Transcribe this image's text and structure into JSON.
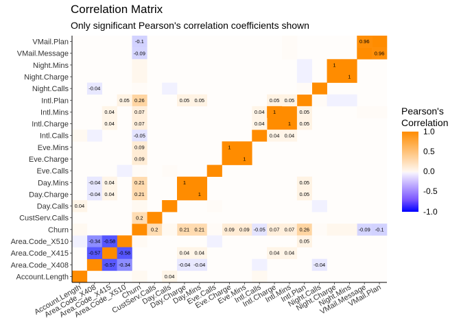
{
  "chart_data": {
    "type": "heatmap",
    "title": "Correlation Matrix",
    "subtitle": "Only significant Pearson's correlation coefficients shown",
    "legend": {
      "title_lines": [
        "Pearson's",
        "Correlation"
      ],
      "ticks": [
        "1.0",
        "0.5",
        "0.0",
        "-0.5",
        "-1.0"
      ],
      "tick_values": [
        1.0,
        0.5,
        0.0,
        -0.5,
        -1.0
      ],
      "range": [
        -1,
        1
      ],
      "placement": "right"
    },
    "variables": [
      "Account.Length",
      "Area.Code_X408",
      "Area.Code_X415",
      "Area.Code_X510",
      "Churn",
      "CustServ.Calls",
      "Day.Calls",
      "Day.Charge",
      "Day.Mins",
      "Eve.Calls",
      "Eve.Charge",
      "Eve.Mins",
      "Intl.Calls",
      "Intl.Charge",
      "Intl.Mins",
      "Intl.Plan",
      "Night.Calls",
      "Night.Charge",
      "Night.Mins",
      "VMail.Message",
      "VMail.Plan"
    ],
    "cells": [
      {
        "x": "Account.Length",
        "y": "Account.Length",
        "value": 1,
        "label": ""
      },
      {
        "x": "Area.Code_X408",
        "y": "Area.Code_X408",
        "value": 1,
        "label": ""
      },
      {
        "x": "Area.Code_X415",
        "y": "Area.Code_X415",
        "value": 1,
        "label": ""
      },
      {
        "x": "Area.Code_X510",
        "y": "Area.Code_X510",
        "value": 1,
        "label": ""
      },
      {
        "x": "Churn",
        "y": "Churn",
        "value": 1,
        "label": ""
      },
      {
        "x": "CustServ.Calls",
        "y": "CustServ.Calls",
        "value": 1,
        "label": ""
      },
      {
        "x": "Day.Calls",
        "y": "Day.Calls",
        "value": 1,
        "label": ""
      },
      {
        "x": "Day.Charge",
        "y": "Day.Charge",
        "value": 1,
        "label": ""
      },
      {
        "x": "Day.Mins",
        "y": "Day.Mins",
        "value": 1,
        "label": ""
      },
      {
        "x": "Eve.Calls",
        "y": "Eve.Calls",
        "value": 1,
        "label": ""
      },
      {
        "x": "Eve.Charge",
        "y": "Eve.Charge",
        "value": 1,
        "label": ""
      },
      {
        "x": "Eve.Mins",
        "y": "Eve.Mins",
        "value": 1,
        "label": ""
      },
      {
        "x": "Intl.Calls",
        "y": "Intl.Calls",
        "value": 1,
        "label": ""
      },
      {
        "x": "Intl.Charge",
        "y": "Intl.Charge",
        "value": 1,
        "label": ""
      },
      {
        "x": "Intl.Mins",
        "y": "Intl.Mins",
        "value": 1,
        "label": ""
      },
      {
        "x": "Intl.Plan",
        "y": "Intl.Plan",
        "value": 1,
        "label": ""
      },
      {
        "x": "Night.Calls",
        "y": "Night.Calls",
        "value": 1,
        "label": ""
      },
      {
        "x": "Night.Charge",
        "y": "Night.Charge",
        "value": 1,
        "label": ""
      },
      {
        "x": "Night.Mins",
        "y": "Night.Mins",
        "value": 1,
        "label": ""
      },
      {
        "x": "VMail.Message",
        "y": "VMail.Message",
        "value": 1,
        "label": ""
      },
      {
        "x": "VMail.Plan",
        "y": "VMail.Plan",
        "value": 1,
        "label": ""
      },
      {
        "x": "Churn",
        "y": "VMail.Plan",
        "value": -0.1,
        "label": "-0.1"
      },
      {
        "x": "VMail.Message",
        "y": "VMail.Plan",
        "value": 0.96,
        "label": "0.96"
      },
      {
        "x": "Churn",
        "y": "VMail.Message",
        "value": -0.09,
        "label": "-0.09"
      },
      {
        "x": "VMail.Plan",
        "y": "VMail.Message",
        "value": 0.96,
        "label": "0.96"
      },
      {
        "x": "Night.Charge",
        "y": "Night.Mins",
        "value": 1,
        "label": "1"
      },
      {
        "x": "Night.Mins",
        "y": "Night.Charge",
        "value": 1,
        "label": "1"
      },
      {
        "x": "Area.Code_X408",
        "y": "Night.Calls",
        "value": -0.04,
        "label": "-0.04"
      },
      {
        "x": "Churn",
        "y": "Intl.Plan",
        "value": 0.26,
        "label": "0.26"
      },
      {
        "x": "Area.Code_X510",
        "y": "Intl.Plan",
        "value": 0.05,
        "label": "0.05"
      },
      {
        "x": "Day.Charge",
        "y": "Intl.Plan",
        "value": 0.05,
        "label": "0.05"
      },
      {
        "x": "Day.Mins",
        "y": "Intl.Plan",
        "value": 0.05,
        "label": "0.05"
      },
      {
        "x": "Intl.Charge",
        "y": "Intl.Plan",
        "value": 0.05,
        "label": "0.05"
      },
      {
        "x": "Intl.Mins",
        "y": "Intl.Plan",
        "value": 0.05,
        "label": "0.05"
      },
      {
        "x": "Area.Code_X415",
        "y": "Intl.Mins",
        "value": 0.04,
        "label": "0.04"
      },
      {
        "x": "Churn",
        "y": "Intl.Mins",
        "value": 0.07,
        "label": "0.07"
      },
      {
        "x": "Intl.Calls",
        "y": "Intl.Mins",
        "value": 0.04,
        "label": "0.04"
      },
      {
        "x": "Intl.Charge",
        "y": "Intl.Mins",
        "value": 1,
        "label": "1"
      },
      {
        "x": "Intl.Plan",
        "y": "Intl.Mins",
        "value": 0.05,
        "label": "0.05"
      },
      {
        "x": "Area.Code_X415",
        "y": "Intl.Charge",
        "value": 0.04,
        "label": "0.04"
      },
      {
        "x": "Churn",
        "y": "Intl.Charge",
        "value": 0.07,
        "label": "0.07"
      },
      {
        "x": "Intl.Calls",
        "y": "Intl.Charge",
        "value": 0.04,
        "label": "0.04"
      },
      {
        "x": "Intl.Mins",
        "y": "Intl.Charge",
        "value": 1,
        "label": "1"
      },
      {
        "x": "Intl.Plan",
        "y": "Intl.Charge",
        "value": 0.05,
        "label": "0.05"
      },
      {
        "x": "Churn",
        "y": "Intl.Calls",
        "value": -0.05,
        "label": "-0.05"
      },
      {
        "x": "Intl.Charge",
        "y": "Intl.Calls",
        "value": 0.04,
        "label": "0.04"
      },
      {
        "x": "Intl.Mins",
        "y": "Intl.Calls",
        "value": 0.04,
        "label": "0.04"
      },
      {
        "x": "Churn",
        "y": "Eve.Mins",
        "value": 0.09,
        "label": "0.09"
      },
      {
        "x": "Eve.Charge",
        "y": "Eve.Mins",
        "value": 1,
        "label": "1"
      },
      {
        "x": "Churn",
        "y": "Eve.Charge",
        "value": 0.09,
        "label": "0.09"
      },
      {
        "x": "Eve.Mins",
        "y": "Eve.Charge",
        "value": 1,
        "label": "1"
      },
      {
        "x": "Area.Code_X408",
        "y": "Day.Mins",
        "value": -0.04,
        "label": "-0.04"
      },
      {
        "x": "Area.Code_X415",
        "y": "Day.Mins",
        "value": 0.04,
        "label": "0.04"
      },
      {
        "x": "Churn",
        "y": "Day.Mins",
        "value": 0.21,
        "label": "0.21"
      },
      {
        "x": "Day.Charge",
        "y": "Day.Mins",
        "value": 1,
        "label": "1"
      },
      {
        "x": "Intl.Plan",
        "y": "Day.Mins",
        "value": 0.05,
        "label": "0.05"
      },
      {
        "x": "Area.Code_X408",
        "y": "Day.Charge",
        "value": -0.04,
        "label": "-0.04"
      },
      {
        "x": "Area.Code_X415",
        "y": "Day.Charge",
        "value": 0.04,
        "label": "0.04"
      },
      {
        "x": "Churn",
        "y": "Day.Charge",
        "value": 0.21,
        "label": "0.21"
      },
      {
        "x": "Day.Mins",
        "y": "Day.Charge",
        "value": 1,
        "label": "1"
      },
      {
        "x": "Intl.Plan",
        "y": "Day.Charge",
        "value": 0.05,
        "label": "0.05"
      },
      {
        "x": "Account.Length",
        "y": "Day.Calls",
        "value": 0.04,
        "label": "0.04"
      },
      {
        "x": "Churn",
        "y": "CustServ.Calls",
        "value": 0.2,
        "label": "0.2"
      },
      {
        "x": "CustServ.Calls",
        "y": "Churn",
        "value": 0.2,
        "label": "0.2"
      },
      {
        "x": "Day.Charge",
        "y": "Churn",
        "value": 0.21,
        "label": "0.21"
      },
      {
        "x": "Day.Mins",
        "y": "Churn",
        "value": 0.21,
        "label": "0.21"
      },
      {
        "x": "Eve.Charge",
        "y": "Churn",
        "value": 0.09,
        "label": "0.09"
      },
      {
        "x": "Eve.Mins",
        "y": "Churn",
        "value": 0.09,
        "label": "0.09"
      },
      {
        "x": "Intl.Calls",
        "y": "Churn",
        "value": -0.05,
        "label": "-0.05"
      },
      {
        "x": "Intl.Charge",
        "y": "Churn",
        "value": 0.07,
        "label": "0.07"
      },
      {
        "x": "Intl.Mins",
        "y": "Churn",
        "value": 0.07,
        "label": "0.07"
      },
      {
        "x": "Intl.Plan",
        "y": "Churn",
        "value": 0.26,
        "label": "0.26"
      },
      {
        "x": "VMail.Message",
        "y": "Churn",
        "value": -0.09,
        "label": "-0.09"
      },
      {
        "x": "VMail.Plan",
        "y": "Churn",
        "value": -0.1,
        "label": "-0.1"
      },
      {
        "x": "Area.Code_X408",
        "y": "Area.Code_X510",
        "value": -0.34,
        "label": "-0.34"
      },
      {
        "x": "Area.Code_X415",
        "y": "Area.Code_X510",
        "value": -0.58,
        "label": "-0.58"
      },
      {
        "x": "Intl.Plan",
        "y": "Area.Code_X510",
        "value": 0.05,
        "label": "0.05"
      },
      {
        "x": "Area.Code_X408",
        "y": "Area.Code_X415",
        "value": -0.57,
        "label": "-0.57"
      },
      {
        "x": "Area.Code_X510",
        "y": "Area.Code_X415",
        "value": -0.58,
        "label": "-0.58"
      },
      {
        "x": "Day.Charge",
        "y": "Area.Code_X415",
        "value": 0.04,
        "label": "0.04"
      },
      {
        "x": "Day.Mins",
        "y": "Area.Code_X415",
        "value": 0.04,
        "label": "0.04"
      },
      {
        "x": "Intl.Charge",
        "y": "Area.Code_X415",
        "value": 0.04,
        "label": "0.04"
      },
      {
        "x": "Intl.Mins",
        "y": "Area.Code_X415",
        "value": 0.04,
        "label": "0.04"
      },
      {
        "x": "Area.Code_X415",
        "y": "Area.Code_X408",
        "value": -0.57,
        "label": "-0.57"
      },
      {
        "x": "Area.Code_X510",
        "y": "Area.Code_X408",
        "value": -0.34,
        "label": "-0.34"
      },
      {
        "x": "Day.Charge",
        "y": "Area.Code_X408",
        "value": -0.04,
        "label": "-0.04"
      },
      {
        "x": "Day.Mins",
        "y": "Area.Code_X408",
        "value": -0.04,
        "label": "-0.04"
      },
      {
        "x": "Night.Calls",
        "y": "Area.Code_X408",
        "value": -0.04,
        "label": "-0.04"
      },
      {
        "x": "Day.Calls",
        "y": "Account.Length",
        "value": 0.04,
        "label": "0.04"
      },
      {
        "x": "Account.Length",
        "y": "Area.Code_X510",
        "value": -0.02,
        "label": ""
      },
      {
        "x": "Churn",
        "y": "Area.Code_X510",
        "value": 0.015,
        "label": ""
      },
      {
        "x": "Churn",
        "y": "Day.Calls",
        "value": 0.02,
        "label": ""
      },
      {
        "x": "Churn",
        "y": "Eve.Calls",
        "value": 0.01,
        "label": ""
      },
      {
        "x": "Churn",
        "y": "Night.Calls",
        "value": 0.01,
        "label": ""
      },
      {
        "x": "Churn",
        "y": "Night.Charge",
        "value": 0.03,
        "label": ""
      },
      {
        "x": "Churn",
        "y": "Night.Mins",
        "value": 0.03,
        "label": ""
      },
      {
        "x": "Churn",
        "y": "Account.Length",
        "value": 0.02,
        "label": ""
      },
      {
        "x": "Day.Calls",
        "y": "Churn",
        "value": 0.02,
        "label": ""
      },
      {
        "x": "Eve.Calls",
        "y": "Churn",
        "value": 0.01,
        "label": ""
      },
      {
        "x": "Night.Calls",
        "y": "Churn",
        "value": 0.01,
        "label": ""
      },
      {
        "x": "Night.Charge",
        "y": "Churn",
        "value": 0.03,
        "label": ""
      },
      {
        "x": "Night.Mins",
        "y": "Churn",
        "value": 0.03,
        "label": ""
      },
      {
        "x": "Account.Length",
        "y": "Churn",
        "value": 0.02,
        "label": ""
      },
      {
        "x": "Night.Calls",
        "y": "Night.Calls",
        "value": 1,
        "label": ""
      },
      {
        "x": "Night.Calls",
        "y": "Day.Calls",
        "value": -0.02,
        "label": ""
      },
      {
        "x": "Day.Calls",
        "y": "Night.Calls",
        "value": -0.02,
        "label": ""
      },
      {
        "x": "Eve.Calls",
        "y": "Day.Calls",
        "value": 0.01,
        "label": ""
      },
      {
        "x": "Day.Calls",
        "y": "Eve.Calls",
        "value": 0.01,
        "label": ""
      },
      {
        "x": "Eve.Calls",
        "y": "Area.Code_X510",
        "value": -0.02,
        "label": ""
      },
      {
        "x": "Area.Code_X510",
        "y": "Eve.Calls",
        "value": -0.02,
        "label": ""
      },
      {
        "x": "Intl.Plan",
        "y": "Night.Calls",
        "value": 0.01,
        "label": ""
      },
      {
        "x": "Night.Calls",
        "y": "Intl.Plan",
        "value": 0.01,
        "label": ""
      },
      {
        "x": "Intl.Mins",
        "y": "VMail.Plan",
        "value": 0.01,
        "label": ""
      },
      {
        "x": "VMail.Plan",
        "y": "Intl.Mins",
        "value": 0.01,
        "label": ""
      },
      {
        "x": "Intl.Mins",
        "y": "VMail.Message",
        "value": 0.01,
        "label": ""
      },
      {
        "x": "VMail.Message",
        "y": "Intl.Mins",
        "value": 0.01,
        "label": ""
      },
      {
        "x": "Night.Charge",
        "y": "Intl.Plan",
        "value": -0.02,
        "label": ""
      },
      {
        "x": "Night.Mins",
        "y": "Intl.Plan",
        "value": -0.02,
        "label": ""
      },
      {
        "x": "Intl.Plan",
        "y": "Night.Charge",
        "value": -0.02,
        "label": ""
      },
      {
        "x": "Intl.Plan",
        "y": "Night.Mins",
        "value": -0.02,
        "label": ""
      },
      {
        "x": "Area.Code_X408",
        "y": "Intl.Calls",
        "value": -0.02,
        "label": ""
      },
      {
        "x": "Intl.Calls",
        "y": "Area.Code_X408",
        "value": -0.02,
        "label": ""
      },
      {
        "x": "Account.Length",
        "y": "Intl.Calls",
        "value": 0.02,
        "label": ""
      },
      {
        "x": "Intl.Calls",
        "y": "Account.Length",
        "value": 0.02,
        "label": ""
      }
    ]
  }
}
